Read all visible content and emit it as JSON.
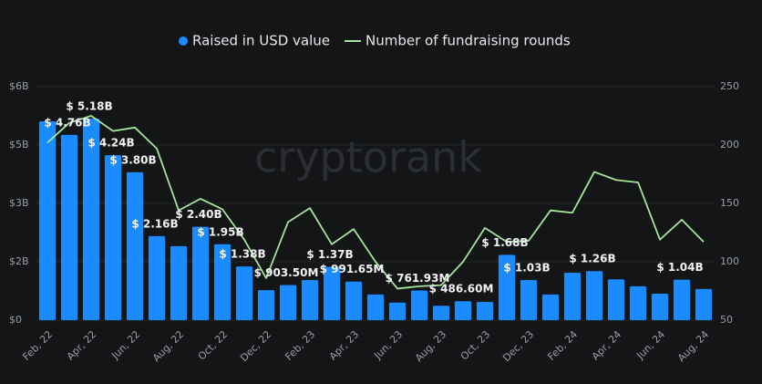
{
  "chart_data": {
    "type": "bar",
    "watermark": "cryptorank",
    "categories": [
      "Feb, 22",
      null,
      "Apr, 22",
      null,
      "Jun, 22",
      null,
      "Aug, 22",
      null,
      "Oct, 22",
      null,
      "Dec, 22",
      null,
      "Feb, 23",
      null,
      "Apr, 23",
      null,
      "Jun, 23",
      null,
      "Aug, 23",
      null,
      "Oct, 23",
      null,
      "Dec, 23",
      null,
      "Feb, 24",
      null,
      "Apr, 24",
      null,
      "Jun, 24",
      null,
      "Aug, 24"
    ],
    "series": [
      {
        "name": "Raised in USD value",
        "type": "bar",
        "color": "#1a8cff",
        "values": [
          5.11,
          4.76,
          5.18,
          4.24,
          3.8,
          2.16,
          1.9,
          2.4,
          1.95,
          1.38,
          0.77,
          0.9035,
          1.03,
          1.37,
          0.99165,
          0.66,
          0.45,
          0.76193,
          0.37,
          0.4866,
          0.47,
          1.68,
          1.03,
          0.66,
          1.22,
          1.26,
          1.05,
          0.87,
          0.68,
          1.04,
          0.8
        ],
        "value_labels": [
          null,
          "$ 4.76B",
          "$ 5.18B",
          "$ 4.24B",
          "$ 3.80B",
          "$ 2.16B",
          null,
          "$ 2.40B",
          "$ 1.95B",
          "$ 1.38B",
          null,
          "$ 903.50M",
          null,
          "$ 1.37B",
          "$ 991.65M",
          null,
          null,
          "$ 761.93M",
          null,
          "$ 486.60M",
          null,
          "$ 1.68B",
          "$ 1.03B",
          null,
          null,
          "$ 1.26B",
          null,
          null,
          null,
          "$ 1.04B",
          null
        ]
      },
      {
        "name": "Number of fundraising rounds",
        "type": "line",
        "axis": "y2",
        "color": "#a6e39c",
        "values": [
          202,
          219,
          225,
          212,
          215,
          197,
          144,
          154,
          145,
          119,
          86,
          134,
          146,
          115,
          128,
          100,
          77,
          79,
          80,
          100,
          129,
          117,
          118,
          144,
          142,
          177,
          170,
          168,
          119,
          136,
          117
        ]
      }
    ],
    "ylim": [
      0,
      6
    ],
    "yticks": [
      {
        "value": 0,
        "label": "$0"
      },
      {
        "value": 1.5,
        "label": "$2B"
      },
      {
        "value": 3,
        "label": "$3B"
      },
      {
        "value": 4.5,
        "label": "$5B"
      },
      {
        "value": 6,
        "label": "$6B"
      }
    ],
    "y2lim": [
      50,
      250
    ],
    "y2ticks": [
      50,
      100,
      150,
      200,
      250
    ],
    "grid": true
  }
}
